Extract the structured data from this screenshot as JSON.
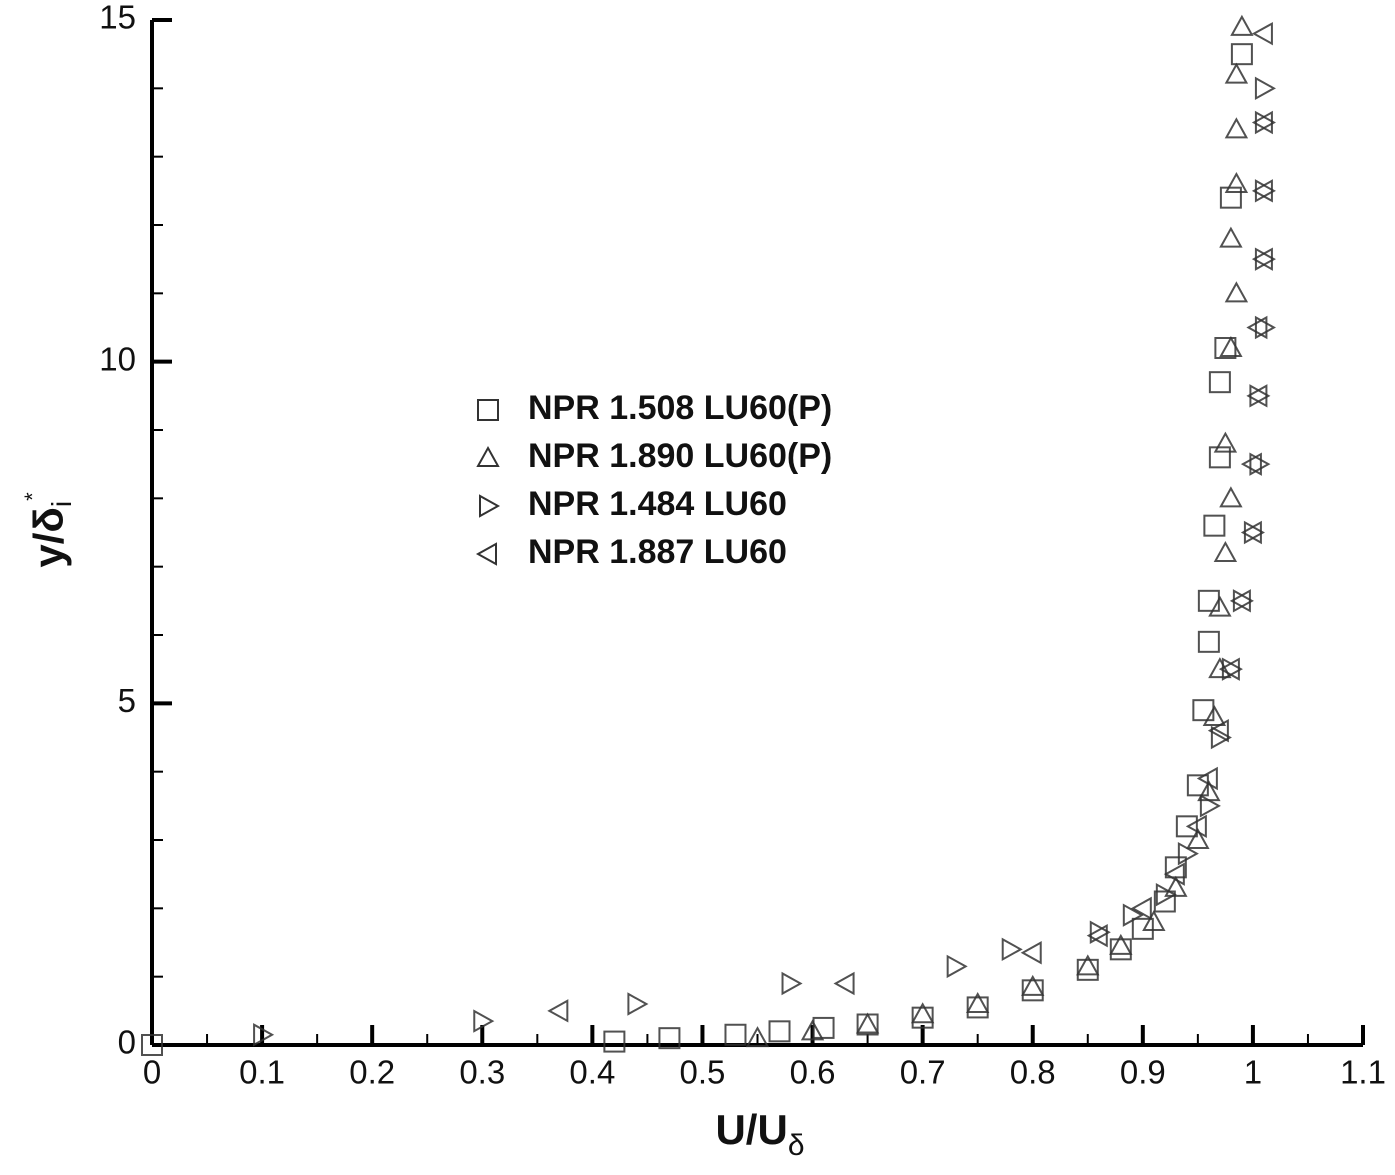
{
  "chart_data": {
    "type": "scatter",
    "xlabel": {
      "text": "U/U",
      "sub": "δ"
    },
    "ylabel": {
      "text": "y/δ",
      "sub": "i",
      "sup": "*"
    },
    "xlim": [
      0,
      1.1
    ],
    "ylim": [
      0,
      15
    ],
    "xticks": [
      0,
      0.1,
      0.2,
      0.3,
      0.4,
      0.5,
      0.6,
      0.7,
      0.8,
      0.9,
      1,
      1.1
    ],
    "yticks": [
      0,
      5,
      10,
      15
    ],
    "xminorticks": [
      0.05,
      0.15,
      0.25,
      0.35,
      0.45,
      0.55,
      0.65,
      0.75,
      0.85,
      0.95,
      1.05
    ],
    "yminorticks": [
      1,
      2,
      3,
      4,
      6,
      7,
      8,
      9,
      11,
      12,
      13,
      14
    ],
    "legend": "center",
    "series": [
      {
        "name": "NPR 1.508 LU60(P)",
        "marker": "square",
        "color": "#333333",
        "x": [
          0,
          0.42,
          0.47,
          0.53,
          0.57,
          0.61,
          0.65,
          0.7,
          0.75,
          0.8,
          0.85,
          0.88,
          0.9,
          0.92,
          0.93,
          0.94,
          0.95,
          0.955,
          0.96,
          0.96,
          0.965,
          0.97,
          0.97,
          0.975,
          0.98,
          0.99
        ],
        "y": [
          0,
          0.05,
          0.1,
          0.15,
          0.2,
          0.25,
          0.3,
          0.4,
          0.55,
          0.8,
          1.1,
          1.4,
          1.7,
          2.1,
          2.6,
          3.2,
          3.8,
          4.9,
          5.9,
          6.5,
          7.6,
          8.6,
          9.7,
          10.2,
          12.4,
          14.5
        ]
      },
      {
        "name": "NPR 1.890 LU60(P)",
        "marker": "triangle-up",
        "color": "#333333",
        "x": [
          0.55,
          0.6,
          0.65,
          0.7,
          0.75,
          0.8,
          0.85,
          0.88,
          0.91,
          0.93,
          0.95,
          0.96,
          0.965,
          0.97,
          0.97,
          0.975,
          0.98,
          0.975,
          0.98,
          0.985,
          0.98,
          0.985,
          0.985,
          0.985,
          0.99
        ],
        "y": [
          0.1,
          0.2,
          0.3,
          0.45,
          0.6,
          0.85,
          1.15,
          1.45,
          1.8,
          2.3,
          3,
          3.7,
          4.8,
          5.5,
          6.4,
          7.2,
          8,
          8.8,
          10.2,
          11,
          11.8,
          12.6,
          13.4,
          14.2,
          14.9
        ]
      },
      {
        "name": "NPR 1.484 LU60",
        "marker": "triangle-right",
        "color": "#333333",
        "x": [
          0.1,
          0.3,
          0.44,
          0.58,
          0.73,
          0.78,
          0.86,
          0.89,
          0.92,
          0.94,
          0.96,
          0.97,
          0.98,
          0.99,
          1,
          1.005,
          1.005,
          1.01,
          1.01,
          1.01,
          1.01,
          1.01
        ],
        "y": [
          0.15,
          0.35,
          0.6,
          0.9,
          1.15,
          1.4,
          1.65,
          1.9,
          2.2,
          2.8,
          3.5,
          4.5,
          5.5,
          6.5,
          7.5,
          8.5,
          9.5,
          10.5,
          11.5,
          12.5,
          13.5,
          14
        ]
      },
      {
        "name": "NPR 1.887 LU60",
        "marker": "triangle-left",
        "color": "#333333",
        "x": [
          0.37,
          0.63,
          0.8,
          0.86,
          0.9,
          0.93,
          0.95,
          0.96,
          0.97,
          0.98,
          0.99,
          1,
          1,
          1.005,
          1.005,
          1.01,
          1.01,
          1.01,
          1.01
        ],
        "y": [
          0.5,
          0.9,
          1.35,
          1.6,
          2,
          2.5,
          3.2,
          3.9,
          4.6,
          5.5,
          6.5,
          7.5,
          8.5,
          9.5,
          10.5,
          11.5,
          12.5,
          13.5,
          14.8
        ]
      }
    ]
  }
}
